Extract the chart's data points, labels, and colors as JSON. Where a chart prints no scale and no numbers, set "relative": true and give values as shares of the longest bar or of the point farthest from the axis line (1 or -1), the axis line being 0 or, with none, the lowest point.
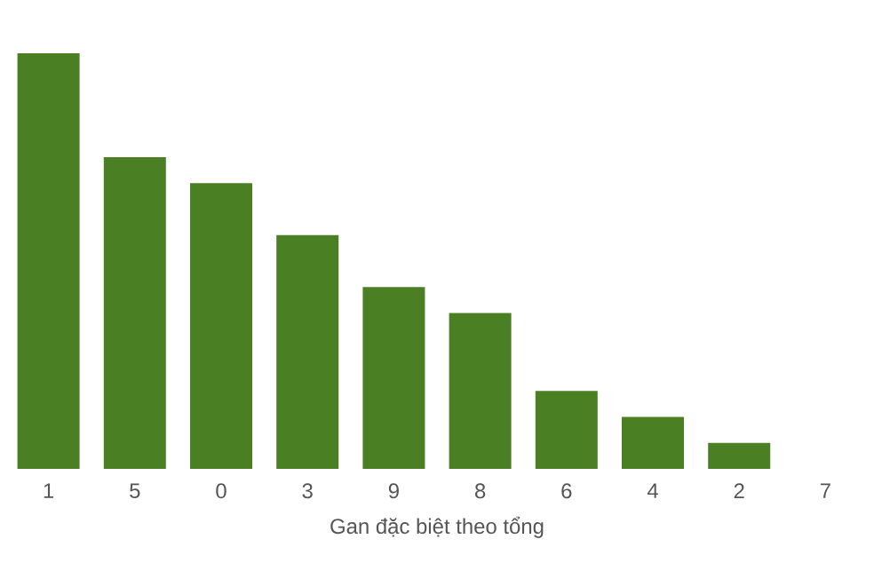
{
  "chart_data": {
    "type": "bar",
    "xlabel": "Gan đặc biệt theo tổng",
    "categories": [
      "1",
      "5",
      "0",
      "3",
      "9",
      "8",
      "6",
      "4",
      "2",
      "7"
    ],
    "values": [
      1,
      0.75,
      0.6875,
      0.5625,
      0.4375,
      0.375,
      0.1875,
      0.125,
      0.0625,
      0
    ],
    "color": "#4a7f23",
    "relative": true
  }
}
